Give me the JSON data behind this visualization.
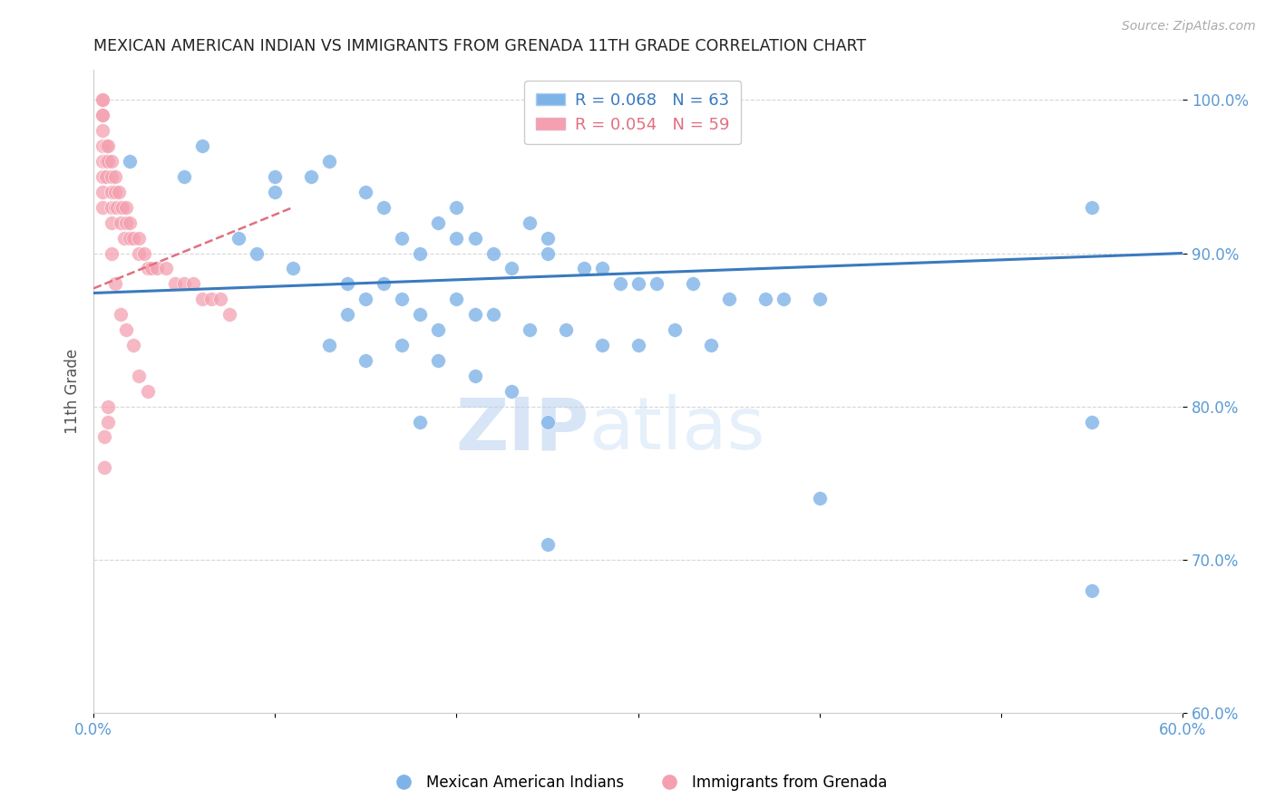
{
  "title": "MEXICAN AMERICAN INDIAN VS IMMIGRANTS FROM GRENADA 11TH GRADE CORRELATION CHART",
  "source": "Source: ZipAtlas.com",
  "xlabel": "",
  "ylabel": "11th Grade",
  "xlim": [
    0.0,
    0.6
  ],
  "ylim": [
    0.6,
    1.02
  ],
  "yticks": [
    0.6,
    0.7,
    0.8,
    0.9,
    1.0
  ],
  "ytick_labels": [
    "60.0%",
    "70.0%",
    "80.0%",
    "90.0%",
    "100.0%"
  ],
  "xticks": [
    0.0,
    0.1,
    0.2,
    0.3,
    0.4,
    0.5,
    0.6
  ],
  "xtick_labels": [
    "0.0%",
    "",
    "",
    "",
    "",
    "",
    "60.0%"
  ],
  "blue_R": 0.068,
  "blue_N": 63,
  "pink_R": 0.054,
  "pink_N": 59,
  "blue_color": "#7eb3e8",
  "pink_color": "#f4a0b0",
  "trend_blue_color": "#3a7abf",
  "trend_pink_color": "#e07080",
  "watermark_zip": "ZIP",
  "watermark_atlas": "atlas",
  "blue_scatter_x": [
    0.3,
    0.02,
    0.06,
    0.05,
    0.1,
    0.1,
    0.12,
    0.13,
    0.15,
    0.16,
    0.17,
    0.18,
    0.19,
    0.2,
    0.2,
    0.21,
    0.22,
    0.23,
    0.24,
    0.25,
    0.25,
    0.27,
    0.28,
    0.29,
    0.3,
    0.31,
    0.33,
    0.35,
    0.37,
    0.38,
    0.4,
    0.08,
    0.09,
    0.11,
    0.14,
    0.14,
    0.15,
    0.16,
    0.17,
    0.18,
    0.19,
    0.2,
    0.21,
    0.22,
    0.24,
    0.26,
    0.28,
    0.3,
    0.32,
    0.34,
    0.13,
    0.15,
    0.17,
    0.19,
    0.21,
    0.23,
    0.25,
    0.18,
    0.55,
    0.55,
    0.4,
    0.25,
    0.55
  ],
  "blue_scatter_y": [
    1.0,
    0.96,
    0.97,
    0.95,
    0.95,
    0.94,
    0.95,
    0.96,
    0.94,
    0.93,
    0.91,
    0.9,
    0.92,
    0.91,
    0.93,
    0.91,
    0.9,
    0.89,
    0.92,
    0.9,
    0.91,
    0.89,
    0.89,
    0.88,
    0.88,
    0.88,
    0.88,
    0.87,
    0.87,
    0.87,
    0.87,
    0.91,
    0.9,
    0.89,
    0.88,
    0.86,
    0.87,
    0.88,
    0.87,
    0.86,
    0.85,
    0.87,
    0.86,
    0.86,
    0.85,
    0.85,
    0.84,
    0.84,
    0.85,
    0.84,
    0.84,
    0.83,
    0.84,
    0.83,
    0.82,
    0.81,
    0.79,
    0.79,
    0.93,
    0.68,
    0.74,
    0.71,
    0.79
  ],
  "pink_scatter_x": [
    0.005,
    0.005,
    0.005,
    0.005,
    0.005,
    0.005,
    0.005,
    0.005,
    0.005,
    0.005,
    0.007,
    0.007,
    0.007,
    0.008,
    0.008,
    0.01,
    0.01,
    0.01,
    0.01,
    0.01,
    0.012,
    0.012,
    0.012,
    0.013,
    0.014,
    0.015,
    0.015,
    0.016,
    0.017,
    0.018,
    0.018,
    0.02,
    0.02,
    0.022,
    0.025,
    0.025,
    0.028,
    0.03,
    0.032,
    0.035,
    0.04,
    0.045,
    0.05,
    0.055,
    0.06,
    0.065,
    0.07,
    0.075,
    0.01,
    0.012,
    0.015,
    0.018,
    0.022,
    0.025,
    0.03,
    0.008,
    0.008,
    0.006,
    0.006
  ],
  "pink_scatter_y": [
    1.0,
    1.0,
    0.99,
    0.99,
    0.98,
    0.97,
    0.96,
    0.95,
    0.94,
    0.93,
    0.97,
    0.96,
    0.95,
    0.97,
    0.96,
    0.96,
    0.95,
    0.94,
    0.93,
    0.92,
    0.95,
    0.94,
    0.93,
    0.93,
    0.94,
    0.93,
    0.92,
    0.93,
    0.91,
    0.93,
    0.92,
    0.92,
    0.91,
    0.91,
    0.91,
    0.9,
    0.9,
    0.89,
    0.89,
    0.89,
    0.89,
    0.88,
    0.88,
    0.88,
    0.87,
    0.87,
    0.87,
    0.86,
    0.9,
    0.88,
    0.86,
    0.85,
    0.84,
    0.82,
    0.81,
    0.8,
    0.79,
    0.78,
    0.76
  ],
  "background_color": "#ffffff",
  "grid_color": "#cccccc"
}
